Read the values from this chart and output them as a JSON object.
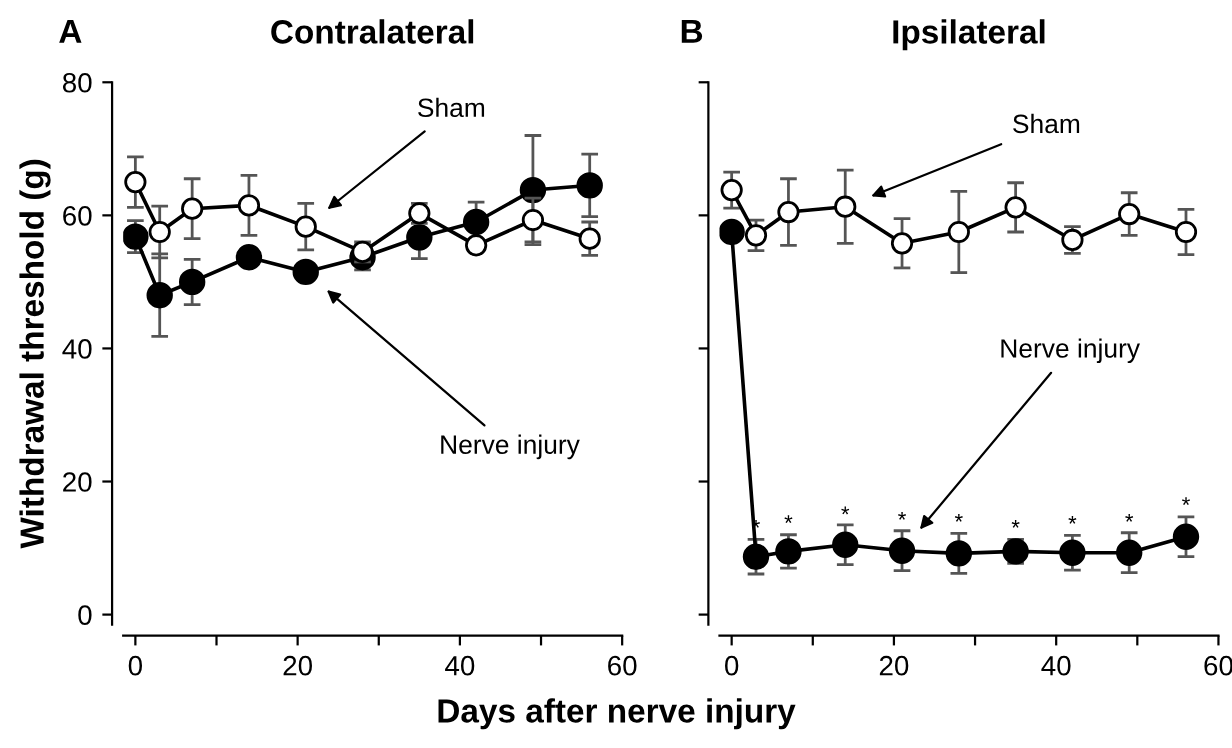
{
  "chart_data": [
    {
      "type": "line",
      "title": "Contralateral",
      "xlabel": "Days after nerve injury",
      "ylabel": "Withdrawal threshold (g)",
      "x": [
        0,
        3,
        7,
        14,
        21,
        28,
        35,
        42,
        49,
        56
      ],
      "series": [
        {
          "name": "Sham",
          "color": "#000000",
          "values": [
            65,
            57.5,
            61,
            61.5,
            58.3,
            54.5,
            60.3,
            55.5,
            59.3,
            56.5
          ],
          "errors": [
            3.8,
            3.9,
            4.5,
            4.5,
            3.5,
            1.5,
            1.5,
            0.5,
            3.3,
            2.5
          ]
        },
        {
          "name": "Nerve injury",
          "color": "#000000",
          "values": [
            56.8,
            48,
            50,
            53.7,
            51.5,
            53.7,
            56.7,
            59,
            63.8,
            64.5
          ],
          "errors": [
            2.4,
            6.2,
            3.4,
            1.3,
            0.5,
            1.9,
            3.2,
            3,
            8.2,
            4.7
          ]
        }
      ],
      "xlim": [
        -1.5,
        60
      ],
      "ylim": [
        -1.5,
        80
      ],
      "xticks": [
        0,
        {
          "value": 10,
          "label": null
        },
        20,
        {
          "value": 30,
          "label": null
        },
        40,
        {
          "value": 50,
          "label": null
        },
        60
      ],
      "yticks": [
        0,
        20,
        40,
        60,
        80
      ],
      "marker": "circle",
      "line_style": "solid",
      "grid": false,
      "legend": false,
      "annotations": [
        "A"
      ]
    },
    {
      "type": "line",
      "title": "Ipsilateral",
      "x": [
        0,
        3,
        7,
        14,
        21,
        28,
        35,
        42,
        49,
        56
      ],
      "series": [
        {
          "name": "Sham",
          "color": "#000000",
          "values": [
            63.8,
            57,
            60.5,
            61.3,
            55.8,
            57.5,
            61.2,
            56.3,
            60.2,
            57.5
          ],
          "errors": [
            2.7,
            2.3,
            5,
            5.5,
            3.7,
            6.1,
            3.7,
            2,
            3.2,
            3.4
          ]
        },
        {
          "name": "Nerve injury",
          "color": "#000000",
          "values": [
            57.5,
            8.7,
            9.5,
            10.5,
            9.6,
            9.2,
            9.5,
            9.3,
            9.3,
            11.7
          ],
          "errors": [
            null,
            2.6,
            2.5,
            3,
            3,
            3,
            1.8,
            2.6,
            3,
            3
          ]
        }
      ],
      "xlim": [
        -1.5,
        60
      ],
      "ylim": [
        -1.5,
        80
      ],
      "xticks": [
        0,
        {
          "value": 10,
          "label": null
        },
        20,
        {
          "value": 30,
          "label": null
        },
        40,
        {
          "value": 50,
          "label": null
        },
        60
      ],
      "yticks": [
        {
          "value": 0,
          "label": null
        },
        {
          "value": 20,
          "label": null
        },
        {
          "value": 40,
          "label": null
        },
        {
          "value": 60,
          "label": null
        },
        {
          "value": 80,
          "label": null
        }
      ],
      "tick_labels": "x",
      "marker": "circle",
      "line_style": "solid",
      "grid": false,
      "legend": false,
      "annotations": [
        "B",
        {
          "text": "*",
          "x": 3,
          "y": 12.8
        },
        {
          "text": "*",
          "x": 7,
          "y": 13.5
        },
        {
          "text": "*",
          "x": 14,
          "y": 14.8
        },
        {
          "text": "*",
          "x": 21,
          "y": 14
        },
        {
          "text": "*",
          "x": 28,
          "y": 13.7
        },
        {
          "text": "*",
          "x": 35,
          "y": 12.8
        },
        {
          "text": "*",
          "x": 42,
          "y": 13.4
        },
        {
          "text": "*",
          "x": 49,
          "y": 13.7
        },
        {
          "text": "*",
          "x": 56,
          "y": 16.2
        }
      ]
    }
  ]
}
